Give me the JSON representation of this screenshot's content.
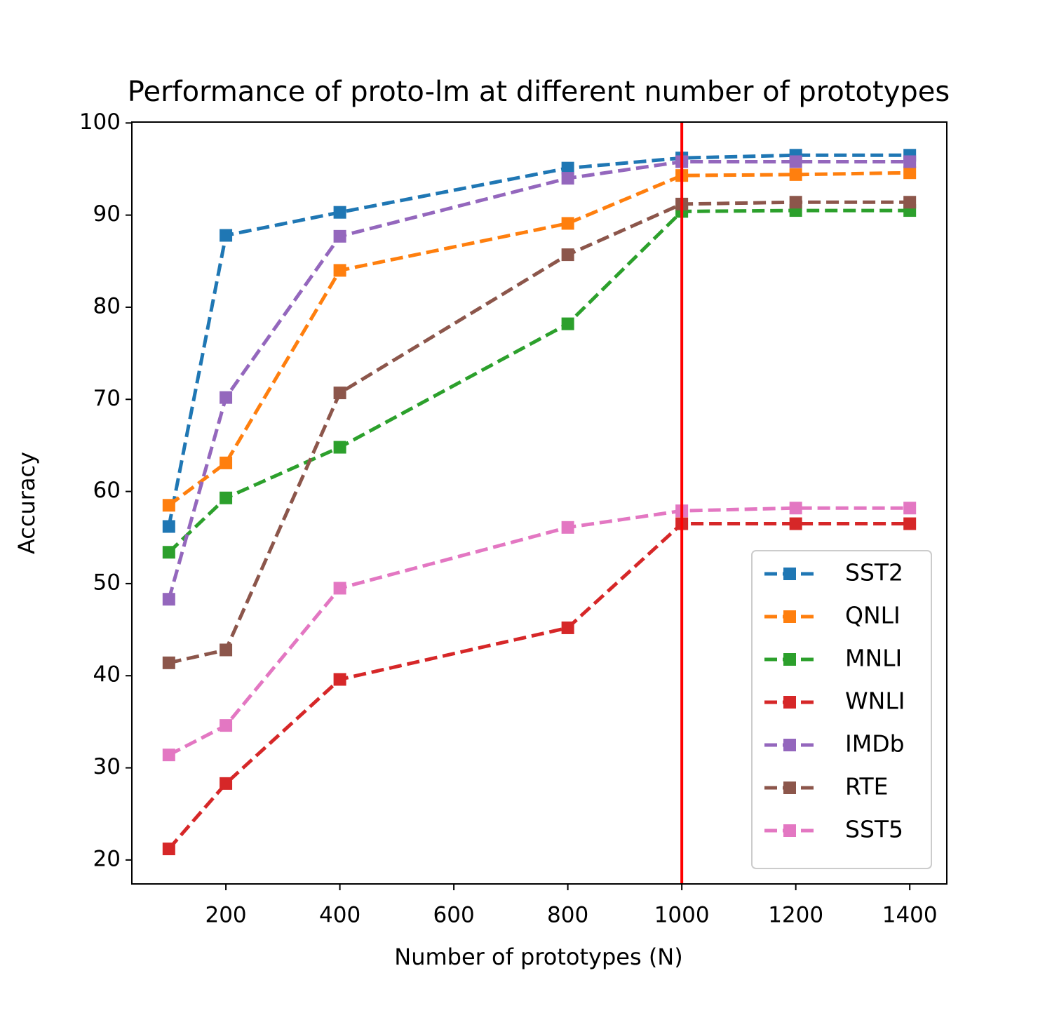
{
  "chart_data": {
    "type": "line",
    "title": "Performance of proto-lm at different number of prototypes",
    "xlabel": "Number of prototypes (N)",
    "ylabel": "Accuracy",
    "x": [
      100,
      200,
      400,
      800,
      1000,
      1200,
      1400
    ],
    "series": [
      {
        "name": "SST2",
        "color": "#1f77b4",
        "values": [
          56.2,
          87.8,
          90.3,
          95.1,
          96.2,
          96.5,
          96.5
        ]
      },
      {
        "name": "QNLI",
        "color": "#ff7f0e",
        "values": [
          58.5,
          63.1,
          84.0,
          89.1,
          94.3,
          94.4,
          94.6
        ]
      },
      {
        "name": "MNLI",
        "color": "#2ca02c",
        "values": [
          53.4,
          59.3,
          64.8,
          78.2,
          90.4,
          90.5,
          90.5
        ]
      },
      {
        "name": "WNLI",
        "color": "#d62728",
        "values": [
          21.2,
          28.3,
          39.6,
          45.2,
          56.5,
          56.5,
          56.5
        ]
      },
      {
        "name": "IMDb",
        "color": "#9467bd",
        "values": [
          48.3,
          70.2,
          87.7,
          94.0,
          95.8,
          95.8,
          95.8
        ]
      },
      {
        "name": "RTE",
        "color": "#8c564b",
        "values": [
          41.4,
          42.8,
          70.7,
          85.7,
          91.2,
          91.4,
          91.4
        ]
      },
      {
        "name": "SST5",
        "color": "#e377c2",
        "values": [
          31.4,
          34.6,
          49.5,
          56.1,
          57.9,
          58.2,
          58.2
        ]
      }
    ],
    "xlim": [
      35,
      1465
    ],
    "ylim": [
      17.4,
      100.1
    ],
    "xticks": [
      200,
      400,
      600,
      800,
      1000,
      1200,
      1400
    ],
    "yticks": [
      20,
      30,
      40,
      50,
      60,
      70,
      80,
      90,
      100
    ],
    "vline": {
      "x": 1000,
      "color": "#ff0000"
    },
    "legend": "lower right"
  }
}
